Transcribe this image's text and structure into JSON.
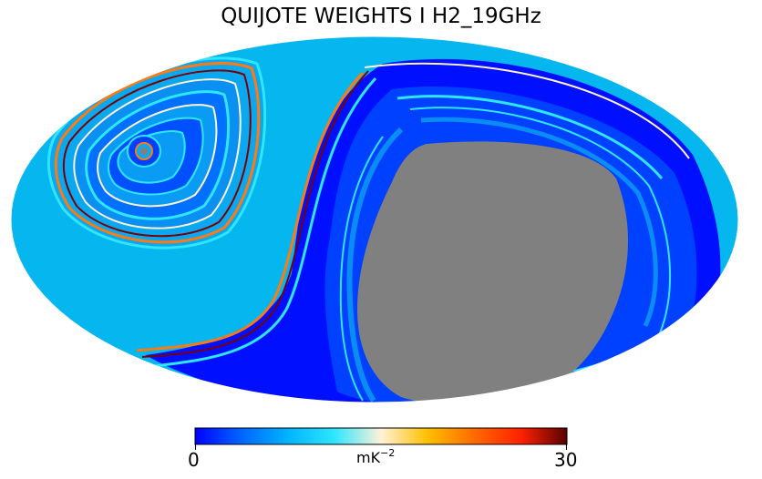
{
  "title": "QUIJOTE WEIGHTS I H2_19GHz",
  "colorbar": {
    "min_label": "0",
    "max_label": "30",
    "unit": "mK",
    "unit_exponent": "−2",
    "range": [
      0,
      30
    ],
    "stops": [
      "#0000ff",
      "#0066ff",
      "#00b4ff",
      "#2fe6ff",
      "#fff2d8",
      "#ffbf00",
      "#ff6a00",
      "#ff2200",
      "#5a0000"
    ]
  },
  "map": {
    "projection": "Mollweide",
    "masked_color": "#808080",
    "background_color": "#06b6ee"
  }
}
